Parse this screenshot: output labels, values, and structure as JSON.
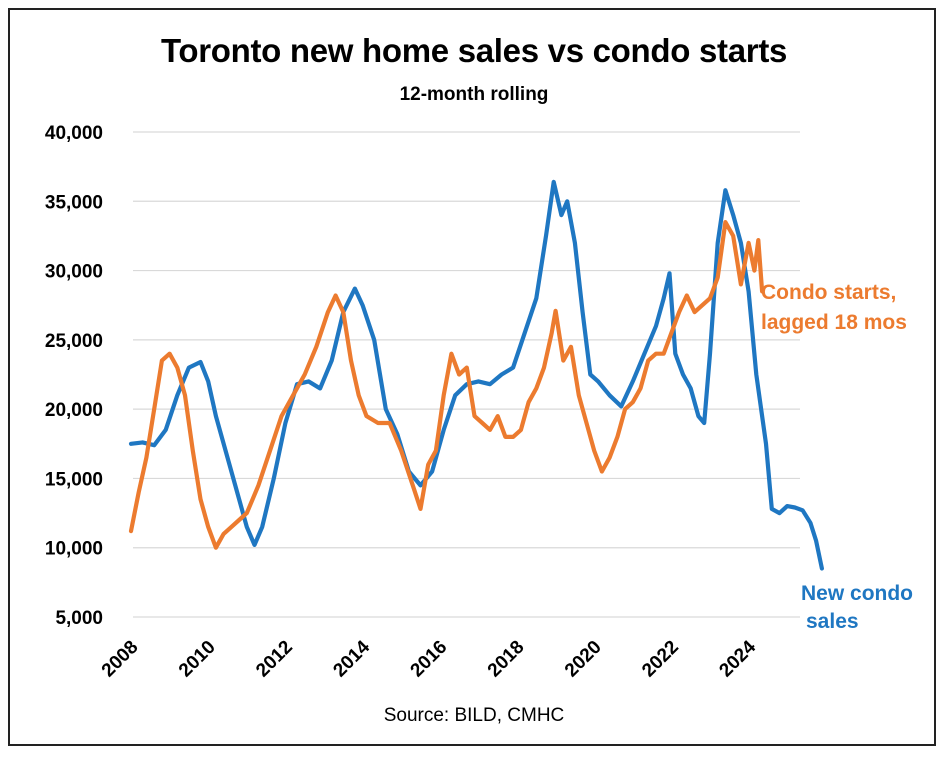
{
  "chart_data": {
    "type": "line",
    "title": "Toronto new home sales vs condo starts",
    "subtitle": "12-month rolling",
    "source": "Source: BILD, CMHC",
    "xlabel": "",
    "ylabel": "",
    "ylim": [
      5000,
      40000
    ],
    "xlim": [
      2008,
      2026
    ],
    "grid": "horizontal",
    "y_ticks": [
      5000,
      10000,
      15000,
      20000,
      25000,
      30000,
      35000,
      40000
    ],
    "y_tick_labels": [
      "5,000",
      "10,000",
      "15,000",
      "20,000",
      "25,000",
      "30,000",
      "35,000",
      "40,000"
    ],
    "x_ticks": [
      2008,
      2010,
      2012,
      2014,
      2016,
      2018,
      2020,
      2022,
      2024
    ],
    "x_tick_labels": [
      "2008",
      "2010",
      "2012",
      "2014",
      "2016",
      "2018",
      "2020",
      "2022",
      "2024"
    ],
    "series": [
      {
        "name": "New condo sales",
        "label_lines": [
          "New condo",
          "sales"
        ],
        "color": "#1F77C2",
        "points": [
          [
            2008.0,
            17500
          ],
          [
            2008.3,
            17600
          ],
          [
            2008.6,
            17400
          ],
          [
            2008.9,
            18500
          ],
          [
            2009.2,
            21000
          ],
          [
            2009.5,
            23000
          ],
          [
            2009.8,
            23400
          ],
          [
            2010.0,
            22000
          ],
          [
            2010.2,
            19500
          ],
          [
            2010.5,
            16500
          ],
          [
            2010.8,
            13500
          ],
          [
            2011.0,
            11500
          ],
          [
            2011.2,
            10200
          ],
          [
            2011.4,
            11500
          ],
          [
            2011.7,
            15000
          ],
          [
            2012.0,
            19000
          ],
          [
            2012.3,
            21800
          ],
          [
            2012.6,
            22000
          ],
          [
            2012.9,
            21500
          ],
          [
            2013.2,
            23500
          ],
          [
            2013.5,
            27000
          ],
          [
            2013.8,
            28700
          ],
          [
            2014.0,
            27500
          ],
          [
            2014.3,
            25000
          ],
          [
            2014.6,
            20000
          ],
          [
            2014.9,
            18200
          ],
          [
            2015.2,
            15500
          ],
          [
            2015.5,
            14500
          ],
          [
            2015.8,
            15500
          ],
          [
            2016.1,
            18500
          ],
          [
            2016.4,
            21000
          ],
          [
            2016.7,
            21800
          ],
          [
            2017.0,
            22000
          ],
          [
            2017.3,
            21800
          ],
          [
            2017.6,
            22500
          ],
          [
            2017.9,
            23000
          ],
          [
            2018.2,
            25500
          ],
          [
            2018.5,
            28000
          ],
          [
            2018.75,
            32500
          ],
          [
            2018.95,
            36400
          ],
          [
            2019.15,
            34000
          ],
          [
            2019.3,
            35000
          ],
          [
            2019.5,
            32000
          ],
          [
            2019.7,
            27000
          ],
          [
            2019.9,
            22500
          ],
          [
            2020.1,
            22000
          ],
          [
            2020.4,
            21000
          ],
          [
            2020.7,
            20200
          ],
          [
            2021.0,
            22000
          ],
          [
            2021.3,
            24000
          ],
          [
            2021.6,
            26000
          ],
          [
            2021.8,
            28000
          ],
          [
            2021.95,
            29800
          ],
          [
            2022.1,
            24000
          ],
          [
            2022.3,
            22500
          ],
          [
            2022.5,
            21500
          ],
          [
            2022.7,
            19500
          ],
          [
            2022.85,
            19000
          ],
          [
            2023.0,
            24000
          ],
          [
            2023.2,
            32000
          ],
          [
            2023.4,
            35800
          ],
          [
            2023.6,
            34000
          ],
          [
            2023.8,
            32000
          ],
          [
            2024.0,
            28500
          ],
          [
            2024.2,
            22500
          ],
          [
            2024.45,
            17500
          ],
          [
            2024.6,
            12800
          ],
          [
            2024.8,
            12500
          ],
          [
            2025.0,
            13000
          ],
          [
            2025.2,
            12900
          ],
          [
            2025.4,
            12700
          ],
          [
            2025.6,
            11800
          ],
          [
            2025.75,
            10500
          ],
          [
            2025.9,
            8500
          ]
        ]
      },
      {
        "name": "Condo starts, lagged 18 mos",
        "label_lines": [
          "Condo starts,",
          "lagged 18 mos"
        ],
        "color": "#EC7B2F",
        "points": [
          [
            2008.0,
            11200
          ],
          [
            2008.2,
            14000
          ],
          [
            2008.4,
            16500
          ],
          [
            2008.6,
            20000
          ],
          [
            2008.8,
            23500
          ],
          [
            2009.0,
            24000
          ],
          [
            2009.2,
            23000
          ],
          [
            2009.4,
            21000
          ],
          [
            2009.6,
            17000
          ],
          [
            2009.8,
            13500
          ],
          [
            2010.0,
            11500
          ],
          [
            2010.2,
            10000
          ],
          [
            2010.4,
            11000
          ],
          [
            2010.6,
            11500
          ],
          [
            2010.8,
            12000
          ],
          [
            2011.0,
            12500
          ],
          [
            2011.3,
            14500
          ],
          [
            2011.6,
            17000
          ],
          [
            2011.9,
            19500
          ],
          [
            2012.2,
            21000
          ],
          [
            2012.5,
            22500
          ],
          [
            2012.8,
            24500
          ],
          [
            2013.1,
            27000
          ],
          [
            2013.3,
            28200
          ],
          [
            2013.5,
            27000
          ],
          [
            2013.7,
            23500
          ],
          [
            2013.9,
            21000
          ],
          [
            2014.1,
            19500
          ],
          [
            2014.4,
            19000
          ],
          [
            2014.7,
            19000
          ],
          [
            2015.0,
            17000
          ],
          [
            2015.3,
            14500
          ],
          [
            2015.5,
            12800
          ],
          [
            2015.7,
            16000
          ],
          [
            2015.9,
            17000
          ],
          [
            2016.1,
            21000
          ],
          [
            2016.3,
            24000
          ],
          [
            2016.5,
            22500
          ],
          [
            2016.7,
            23000
          ],
          [
            2016.9,
            19500
          ],
          [
            2017.1,
            19000
          ],
          [
            2017.3,
            18500
          ],
          [
            2017.5,
            19500
          ],
          [
            2017.7,
            18000
          ],
          [
            2017.9,
            18000
          ],
          [
            2018.1,
            18500
          ],
          [
            2018.3,
            20500
          ],
          [
            2018.5,
            21500
          ],
          [
            2018.7,
            23000
          ],
          [
            2018.9,
            25500
          ],
          [
            2019.0,
            27100
          ],
          [
            2019.2,
            23500
          ],
          [
            2019.4,
            24500
          ],
          [
            2019.6,
            21000
          ],
          [
            2019.8,
            19000
          ],
          [
            2020.0,
            17000
          ],
          [
            2020.2,
            15500
          ],
          [
            2020.4,
            16500
          ],
          [
            2020.6,
            18000
          ],
          [
            2020.8,
            20000
          ],
          [
            2021.0,
            20500
          ],
          [
            2021.2,
            21500
          ],
          [
            2021.4,
            23500
          ],
          [
            2021.6,
            24000
          ],
          [
            2021.8,
            24000
          ],
          [
            2022.0,
            25500
          ],
          [
            2022.2,
            27000
          ],
          [
            2022.4,
            28200
          ],
          [
            2022.6,
            27000
          ],
          [
            2022.8,
            27500
          ],
          [
            2023.0,
            28000
          ],
          [
            2023.2,
            29500
          ],
          [
            2023.4,
            33500
          ],
          [
            2023.6,
            32500
          ],
          [
            2023.8,
            29000
          ],
          [
            2024.0,
            32000
          ],
          [
            2024.15,
            30000
          ],
          [
            2024.25,
            32200
          ],
          [
            2024.35,
            28500
          ]
        ]
      }
    ]
  }
}
